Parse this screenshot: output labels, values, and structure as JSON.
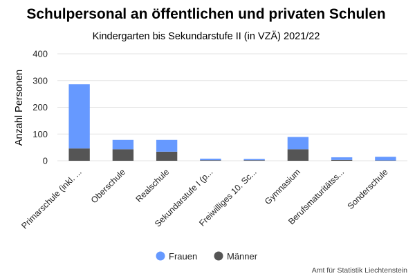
{
  "chart_data": {
    "type": "bar",
    "stacked": true,
    "title": "Schulpersonal an öffentlichen und privaten Schulen",
    "subtitle": "Kindergarten bis Sekundarstufe II (in VZÄ) 2021/22",
    "ylabel": "Anzahl Personen",
    "xlabel": "",
    "ylim": [
      0,
      400
    ],
    "yticks": [
      0,
      100,
      200,
      300,
      400
    ],
    "grid": true,
    "legend_position": "bottom",
    "categories": [
      "Primarschule (inkl. ...",
      "Oberschule",
      "Realschule",
      "Sekundarstufe I (p...",
      "Freiwilliges 10. Sc...",
      "Gymnasium",
      "Berufsmaturitätss...",
      "Sonderschule"
    ],
    "series": [
      {
        "name": "Männer",
        "color": "#555555",
        "values": [
          46,
          43,
          34,
          2,
          2,
          43,
          3,
          1
        ]
      },
      {
        "name": "Frauen",
        "color": "#6699ff",
        "values": [
          240,
          35,
          44,
          6,
          5,
          46,
          10,
          14
        ]
      }
    ],
    "legend": [
      {
        "name": "Frauen",
        "color": "#6699ff"
      },
      {
        "name": "Männer",
        "color": "#555555"
      }
    ],
    "credit": "Amt für Statistik Liechtenstein"
  }
}
